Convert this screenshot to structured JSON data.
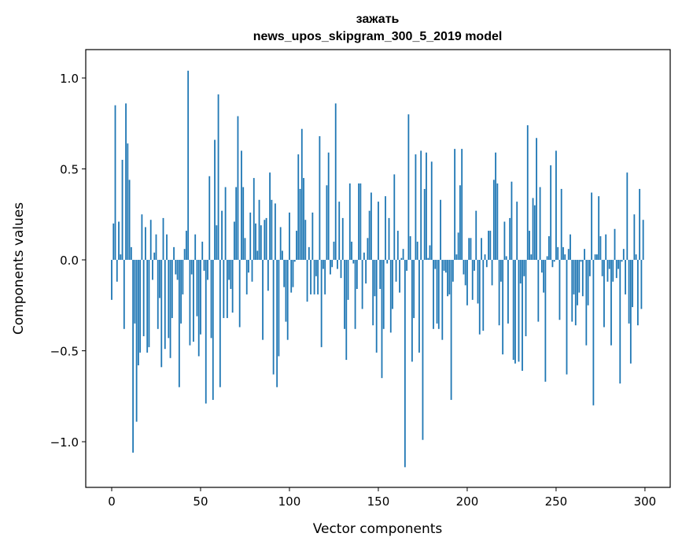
{
  "chart_data": {
    "type": "bar",
    "title": "зажать",
    "subtitle": "news_upos_skipgram_300_5_2019 model",
    "xlabel": "Vector components",
    "ylabel": "Components values",
    "xlim": [
      -14.6,
      314.2
    ],
    "ylim": [
      -1.251,
      1.156
    ],
    "xticks": [
      0,
      50,
      100,
      150,
      200,
      250,
      300
    ],
    "xtick_labels": [
      "0",
      "50",
      "100",
      "150",
      "200",
      "250",
      "300"
    ],
    "yticks": [
      -1.0,
      -0.5,
      0.0,
      0.5,
      1.0
    ],
    "ytick_labels": [
      "−1.0",
      "−0.5",
      "0.0",
      "0.5",
      "1.0"
    ],
    "grid": false,
    "bar_color": "#1f77b4",
    "values": [
      -0.22,
      0.2,
      0.85,
      -0.12,
      0.21,
      0.03,
      0.55,
      -0.38,
      0.86,
      0.64,
      0.44,
      0.07,
      -1.06,
      -0.35,
      -0.89,
      -0.58,
      -0.51,
      0.25,
      -0.42,
      0.18,
      -0.51,
      -0.48,
      0.22,
      -0.11,
      0.04,
      0.14,
      -0.38,
      -0.21,
      -0.59,
      0.23,
      -0.49,
      0.14,
      -0.43,
      -0.54,
      -0.32,
      0.07,
      -0.08,
      -0.11,
      -0.7,
      -0.35,
      -0.19,
      0.06,
      0.16,
      1.04,
      -0.47,
      -0.08,
      -0.45,
      0.14,
      -0.31,
      -0.53,
      -0.41,
      0.1,
      -0.06,
      -0.79,
      -0.11,
      0.46,
      -0.43,
      -0.77,
      0.66,
      0.19,
      0.91,
      -0.7,
      0.27,
      -0.32,
      0.4,
      -0.32,
      -0.11,
      -0.16,
      -0.29,
      0.21,
      0.4,
      0.79,
      -0.37,
      0.6,
      0.4,
      0.12,
      -0.19,
      -0.07,
      0.26,
      -0.12,
      0.45,
      0.2,
      0.05,
      0.33,
      0.19,
      -0.44,
      0.22,
      0.23,
      -0.17,
      0.48,
      0.33,
      -0.63,
      0.31,
      -0.7,
      -0.53,
      0.18,
      0.05,
      -0.15,
      -0.34,
      -0.44,
      0.26,
      -0.18,
      -0.15,
      -0.01,
      0.16,
      0.58,
      0.39,
      0.72,
      0.45,
      0.22,
      -0.23,
      0.07,
      -0.19,
      0.26,
      -0.19,
      -0.09,
      -0.19,
      0.68,
      -0.48,
      -0.05,
      -0.19,
      0.41,
      0.59,
      -0.08,
      -0.04,
      0.1,
      0.86,
      -0.05,
      0.32,
      -0.1,
      0.23,
      -0.38,
      -0.55,
      -0.22,
      0.42,
      0.1,
      -0.02,
      -0.38,
      -0.16,
      0.42,
      0.42,
      -0.27,
      0.04,
      -0.13,
      0.12,
      0.27,
      0.37,
      -0.36,
      -0.2,
      -0.51,
      0.32,
      -0.16,
      -0.65,
      -0.38,
      0.35,
      -0.02,
      0.23,
      -0.4,
      -0.27,
      0.47,
      -0.12,
      0.16,
      -0.18,
      0.01,
      0.06,
      -1.14,
      -0.06,
      0.8,
      0.13,
      -0.56,
      -0.32,
      0.58,
      0.1,
      -0.51,
      0.6,
      -0.99,
      0.39,
      0.59,
      0.01,
      0.08,
      0.54,
      -0.38,
      -0.05,
      -0.35,
      -0.38,
      0.33,
      -0.44,
      -0.06,
      -0.07,
      -0.2,
      -0.19,
      -0.77,
      -0.12,
      0.61,
      0.03,
      0.15,
      0.41,
      0.61,
      -0.08,
      -0.14,
      -0.25,
      0.12,
      0.12,
      -0.22,
      -0.06,
      0.27,
      -0.24,
      -0.41,
      0.12,
      -0.39,
      0.03,
      -0.04,
      0.16,
      0.16,
      -0.14,
      0.44,
      0.59,
      0.42,
      -0.36,
      -0.12,
      -0.52,
      0.21,
      0.02,
      -0.35,
      0.23,
      0.43,
      -0.55,
      -0.57,
      0.32,
      -0.56,
      -0.13,
      -0.61,
      -0.09,
      -0.42,
      0.74,
      0.16,
      0.03,
      0.34,
      0.3,
      0.67,
      -0.34,
      0.4,
      -0.07,
      -0.18,
      -0.67,
      0.02,
      0.13,
      0.52,
      -0.04,
      -0.01,
      0.6,
      0.07,
      -0.33,
      0.39,
      0.07,
      0.03,
      -0.63,
      0.06,
      0.14,
      -0.34,
      -0.19,
      -0.36,
      -0.25,
      -0.18,
      -0.01,
      -0.2,
      0.06,
      -0.47,
      -0.25,
      -0.09,
      0.37,
      -0.8,
      0.03,
      0.03,
      0.35,
      0.13,
      -0.09,
      -0.37,
      0.14,
      -0.12,
      -0.05,
      -0.47,
      -0.12,
      0.17,
      -0.1,
      -0.05,
      -0.68,
      -0.01,
      0.06,
      -0.19,
      0.48,
      -0.35,
      -0.57,
      -0.26,
      0.25,
      0.03,
      -0.36,
      0.39,
      -0.27,
      0.22
    ]
  }
}
